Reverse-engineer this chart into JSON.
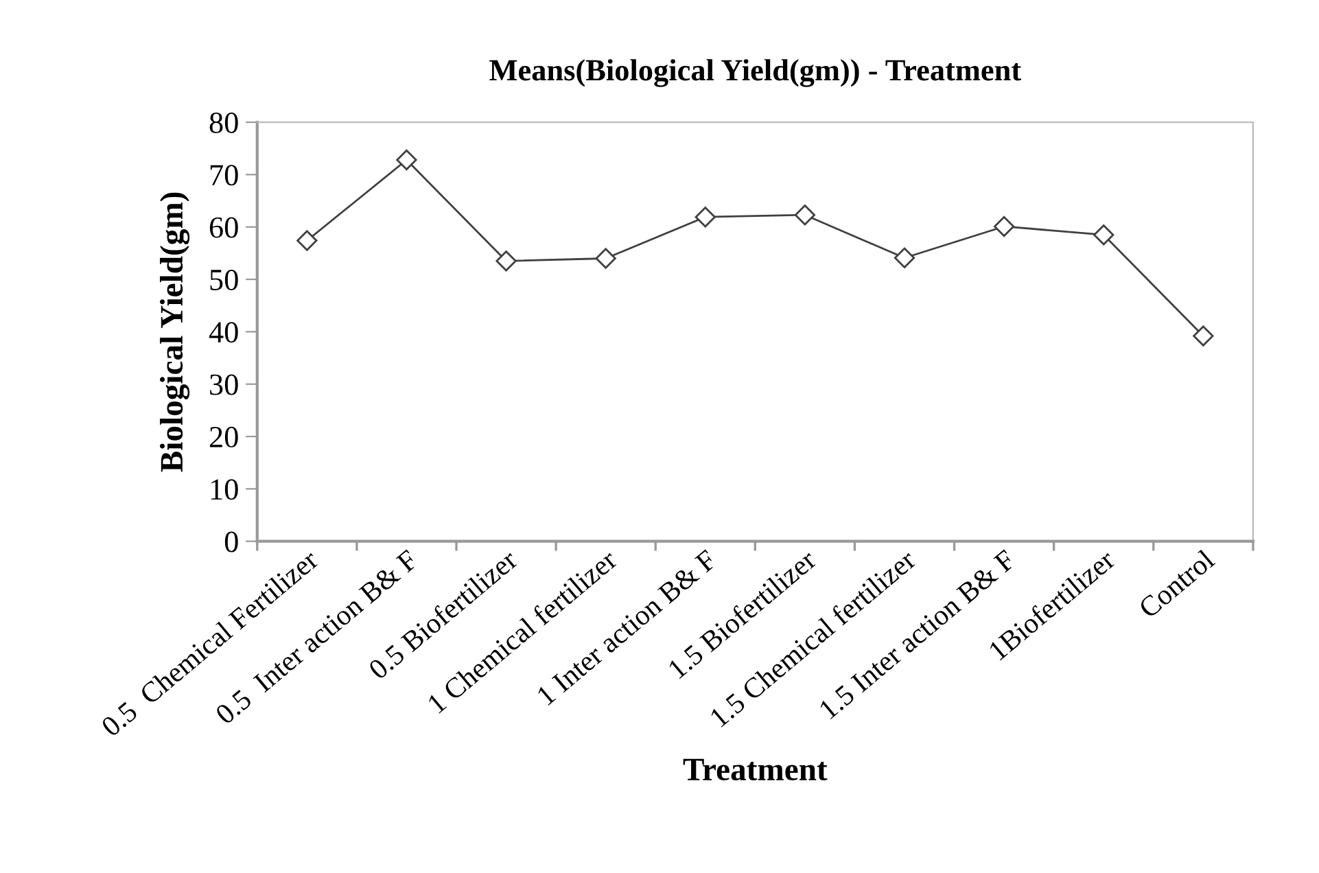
{
  "chart_data": {
    "type": "line",
    "title": "Means(Biological Yield(gm)) - Treatment",
    "xlabel": "Treatment",
    "ylabel": "Biological Yield(gm)",
    "categories": [
      "0.5  Chemical Fertilizer",
      "0.5  Inter action B& F",
      "0.5 Biofertilizer",
      "1 Chemical fertilizer",
      "1 Inter action B& F",
      "1.5 Biofertilizer",
      "1.5 Chemical fertilizer",
      "1.5 Inter action B& F",
      "1Biofertilizer",
      "Control"
    ],
    "series": [
      {
        "color": "#404040",
        "values": [
          57.4,
          72.8,
          53.5,
          54.0,
          61.9,
          62.3,
          54.1,
          60.1,
          58.5,
          39.2
        ]
      }
    ],
    "ylim": [
      0,
      80
    ],
    "yticks": [
      0,
      10,
      20,
      30,
      40,
      50,
      60,
      70,
      80
    ],
    "grid": false,
    "legend": false,
    "marker": "diamond",
    "line_style": "solid"
  }
}
